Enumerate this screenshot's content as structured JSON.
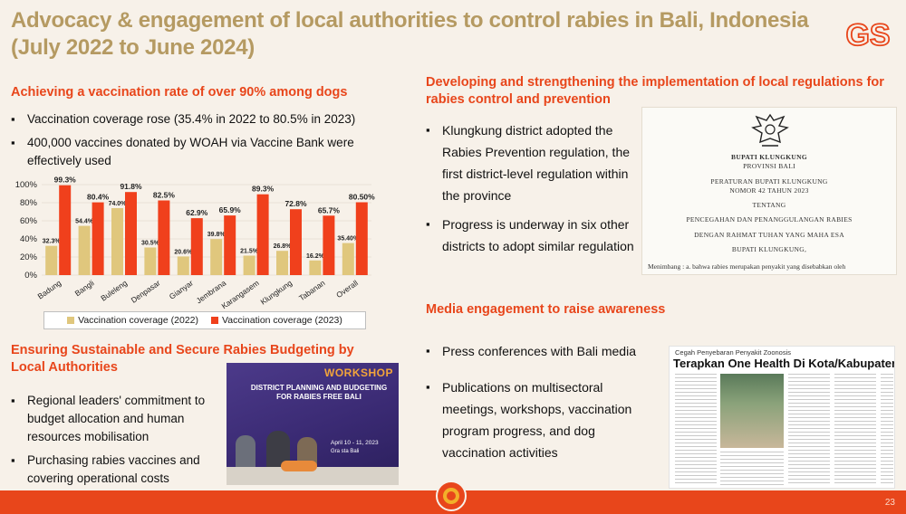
{
  "slide": {
    "title": "Advocacy & engagement of local authorities to control rabies in Bali, Indonesia (July 2022 to June 2024)",
    "logo_text": "GS",
    "page_number": "23"
  },
  "vaccination": {
    "heading": "Achieving a vaccination rate of over 90% among dogs",
    "bullets": [
      "Vaccination coverage rose (35.4% in 2022 to 80.5% in 2023)",
      "400,000 vaccines donated by WOAH via Vaccine Bank were effectively used"
    ]
  },
  "chart_data": {
    "type": "bar",
    "categories": [
      "Badung",
      "Bangli",
      "Buleleng",
      "Denpasar",
      "Gianyar",
      "Jembrana",
      "Karangasem",
      "Klungkung",
      "Tabanan",
      "Overall"
    ],
    "series": [
      {
        "name": "Vaccination coverage (2022)",
        "color": "#e0c77d",
        "values": [
          32.3,
          54.4,
          74.0,
          30.5,
          20.6,
          39.8,
          21.5,
          26.8,
          16.2,
          35.4
        ],
        "labels": [
          "32.3%",
          "54.4%",
          "74.0%",
          "30.5%",
          "20.6%",
          "39.8%",
          "21.5%",
          "26.8%",
          "16.2%",
          "35.40%"
        ]
      },
      {
        "name": "Vaccination coverage (2023)",
        "color": "#f0401c",
        "values": [
          99.3,
          80.4,
          91.8,
          82.5,
          62.9,
          65.9,
          89.3,
          72.8,
          65.7,
          80.5
        ],
        "labels": [
          "99.3%",
          "80.4%",
          "91.8%",
          "82.5%",
          "62.9%",
          "65.9%",
          "89.3%",
          "72.8%",
          "65.7%",
          "80.50%"
        ]
      }
    ],
    "yticks": [
      "0%",
      "20%",
      "40%",
      "60%",
      "80%",
      "100%"
    ],
    "ylim": [
      0,
      100
    ],
    "legend_position": "bottom"
  },
  "regulation": {
    "heading": "Developing and strengthening the implementation of local regulations for rabies control and prevention",
    "bullets": [
      "Klungkung district adopted the Rabies Prevention regulation, the first district-level regulation within the province",
      "Progress is underway in six other districts to adopt similar regulation"
    ],
    "document": {
      "line1": "BUPATI KLUNGKUNG",
      "line2": "PROVINSI BALI",
      "line3": "PERATURAN BUPATI KLUNGKUNG",
      "line4": "NOMOR 42 TAHUN 2023",
      "line5": "TENTANG",
      "line6": "PENCEGAHAN DAN PENANGGULANGAN RABIES",
      "line7": "DENGAN RAHMAT TUHAN YANG MAHA ESA",
      "line8": "BUPATI KLUNGKUNG,",
      "line9": "Menimbang :   a.   bahwa rabies merupakan penyakit yang disebabkan oleh"
    }
  },
  "budget": {
    "heading": "Ensuring Sustainable and Secure Rabies Budgeting by Local Authorities",
    "bullets": [
      "Regional leaders' commitment to budget allocation and human resources mobilisation",
      "Purchasing rabies vaccines and covering operational costs"
    ],
    "workshop": {
      "title": "WORKSHOP",
      "subtitle": "DISTRICT PLANNING AND BUDGETING FOR RABIES FREE BALI",
      "date": "April 10 - 11, 2023",
      "location": "Gra          sta Bali"
    }
  },
  "media": {
    "heading": "Media engagement to raise awareness",
    "bullets": [
      "Press conferences with Bali media",
      "Publications on multisectoral meetings, workshops, vaccination program progress, and dog vaccination activities"
    ],
    "news": {
      "kicker": "Cegah Penyebaran Penyakit Zoonosis",
      "headline": "Terapkan One Health Di Kota/Kabupaten"
    }
  }
}
